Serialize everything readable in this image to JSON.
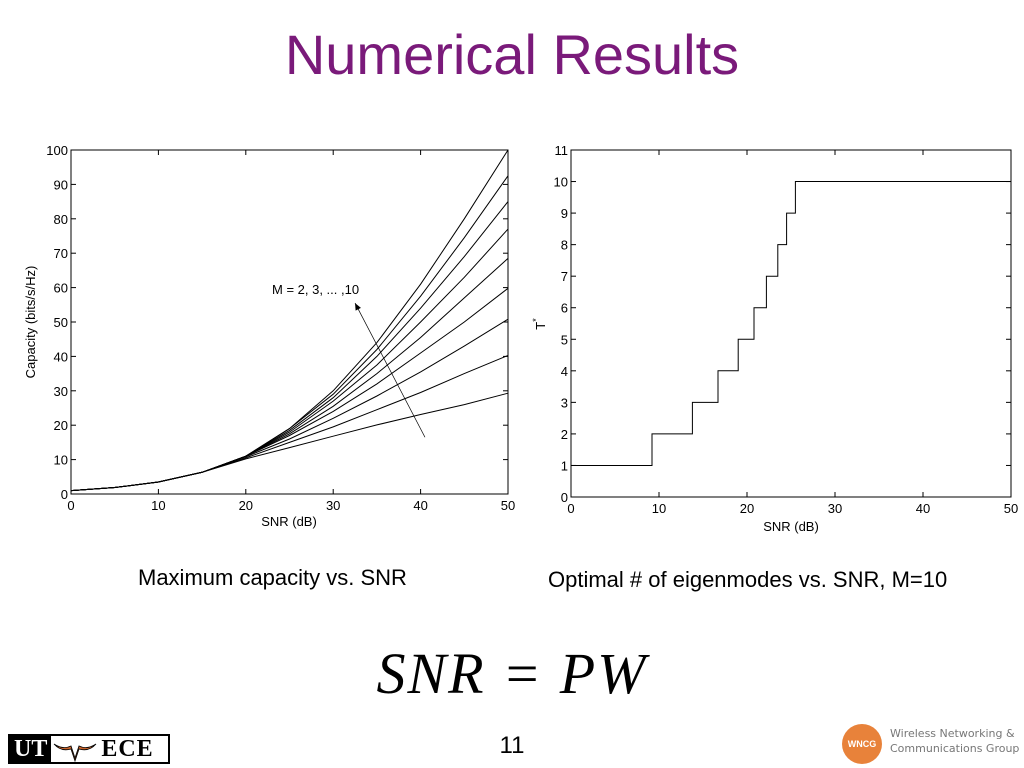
{
  "slide": {
    "title": "Numerical Results",
    "caption_left": "Maximum capacity vs. SNR",
    "caption_right": "Optimal # of eigenmodes vs. SNR, M=10",
    "equation": "SNR = PW",
    "page_number": "11"
  },
  "logos": {
    "ut_left": "UT",
    "ut_right": "ECE",
    "wncg_badge": "WNCG",
    "wncg_line1": "Wireless Networking &",
    "wncg_line2": "Communications Group"
  },
  "chart_data": [
    {
      "type": "line",
      "xlabel": "SNR (dB)",
      "ylabel": "Capacity (bits/s/Hz)",
      "xlim": [
        0,
        50
      ],
      "ylim": [
        0,
        100
      ],
      "xticks": [
        0,
        10,
        20,
        30,
        40,
        50
      ],
      "yticks": [
        0,
        10,
        20,
        30,
        40,
        50,
        60,
        70,
        80,
        90,
        100
      ],
      "grid": false,
      "annotation": {
        "text": "M = 2, 3, ... ,10",
        "arrow_from": [
          40.5,
          16.5
        ],
        "arrow_to": [
          32.5,
          55.5
        ]
      },
      "x": [
        0,
        5,
        10,
        15,
        20,
        25,
        30,
        35,
        40,
        45,
        50
      ],
      "series": [
        {
          "values": [
            1.0,
            1.9,
            3.5,
            6.3,
            10.2,
            13.5,
            16.8,
            20.1,
            23.1,
            26.0,
            29.3
          ]
        },
        {
          "values": [
            1.0,
            1.9,
            3.5,
            6.3,
            10.5,
            15.0,
            19.5,
            24.5,
            29.5,
            35.0,
            40.3
          ]
        },
        {
          "values": [
            1.0,
            1.9,
            3.5,
            6.3,
            10.8,
            16.0,
            22.0,
            28.5,
            35.5,
            43.0,
            50.8
          ]
        },
        {
          "values": [
            1.0,
            1.9,
            3.5,
            6.3,
            11.0,
            17.0,
            24.0,
            32.0,
            41.0,
            50.0,
            59.8
          ]
        },
        {
          "values": [
            1.0,
            1.9,
            3.5,
            6.3,
            11.0,
            17.5,
            25.5,
            35.0,
            45.5,
            57.0,
            68.5
          ]
        },
        {
          "values": [
            1.0,
            1.9,
            3.5,
            6.3,
            11.0,
            18.0,
            27.0,
            37.5,
            50.0,
            63.0,
            77.0
          ]
        },
        {
          "values": [
            1.0,
            1.9,
            3.5,
            6.3,
            11.0,
            18.5,
            28.0,
            40.0,
            54.0,
            69.0,
            85.0
          ]
        },
        {
          "values": [
            1.0,
            1.9,
            3.5,
            6.3,
            11.0,
            19.0,
            29.0,
            42.0,
            57.5,
            74.5,
            92.5
          ]
        },
        {
          "values": [
            1.0,
            1.9,
            3.5,
            6.3,
            11.0,
            19.0,
            30.0,
            44.0,
            61.0,
            80.0,
            100.0
          ]
        }
      ]
    },
    {
      "type": "line",
      "xlabel": "SNR (dB)",
      "ylabel": "T*",
      "xlim": [
        0,
        50
      ],
      "ylim": [
        0,
        11
      ],
      "xticks": [
        0,
        10,
        20,
        30,
        40,
        50
      ],
      "yticks": [
        0,
        1,
        2,
        3,
        4,
        5,
        6,
        7,
        8,
        9,
        10,
        11
      ],
      "grid": false,
      "step": true,
      "x": [
        0,
        9.2,
        13.8,
        16.7,
        19.0,
        20.8,
        22.2,
        23.5,
        24.5,
        25.5,
        50
      ],
      "values": [
        1,
        2,
        3,
        4,
        5,
        6,
        7,
        8,
        9,
        10,
        10
      ]
    }
  ]
}
